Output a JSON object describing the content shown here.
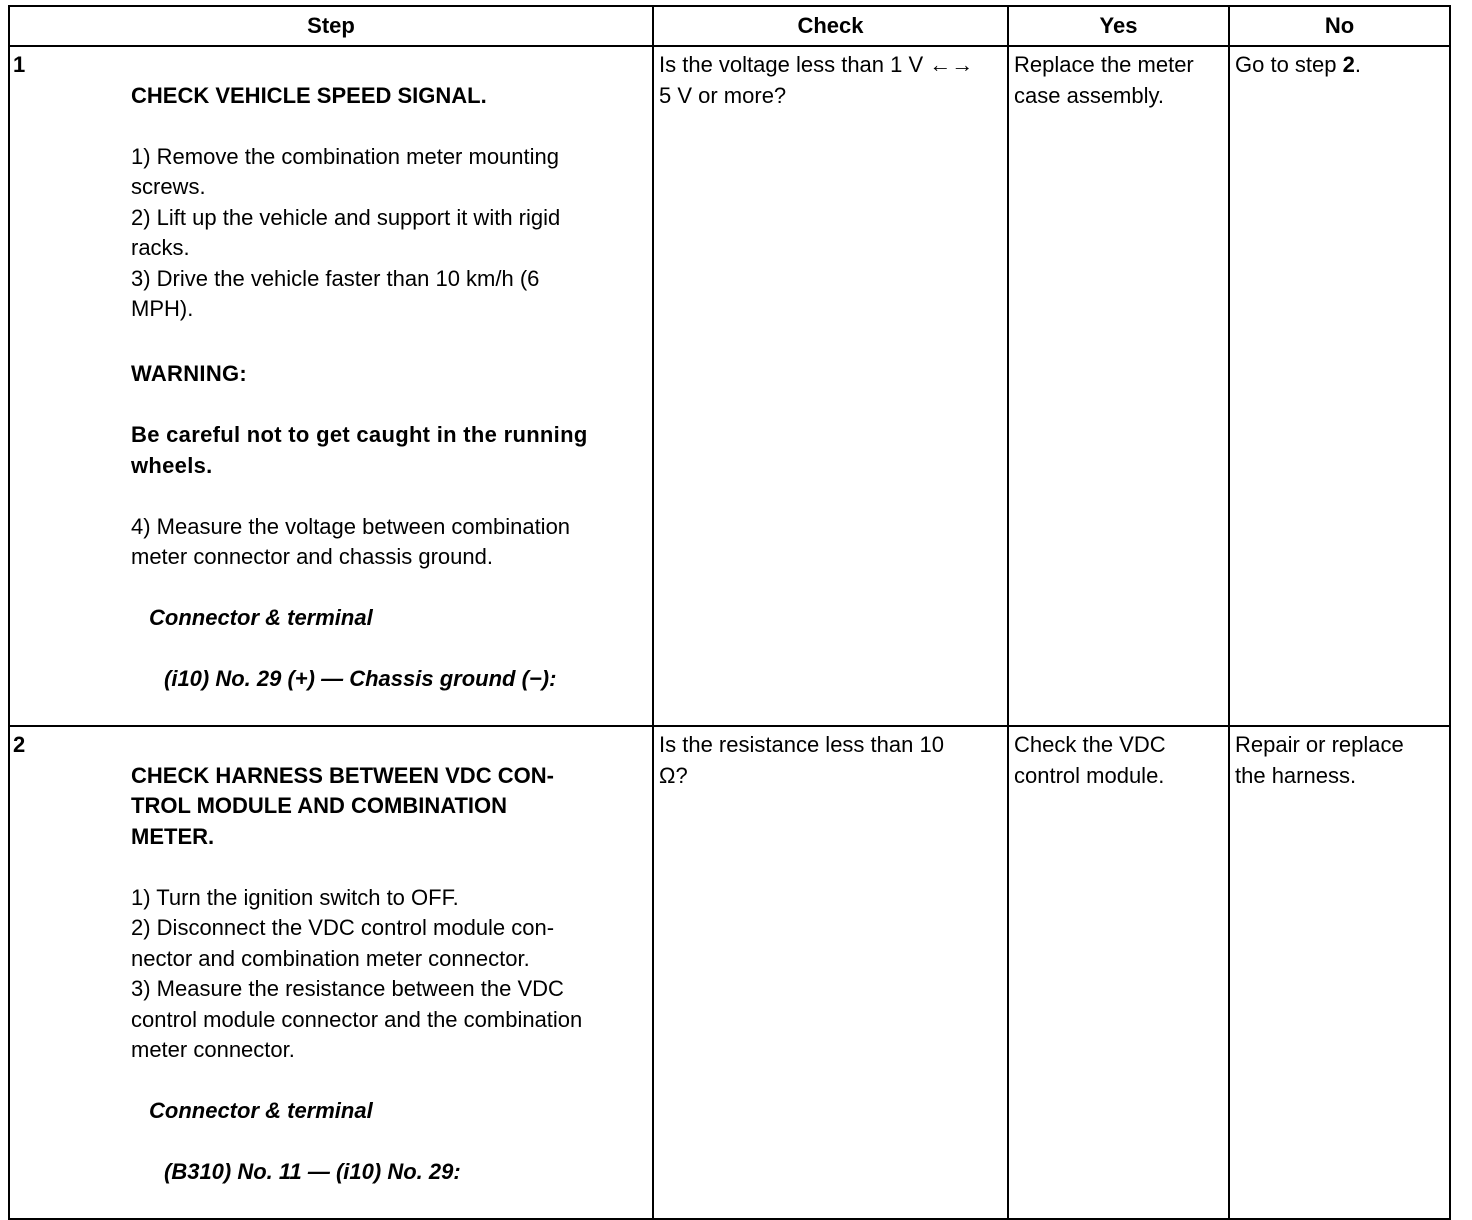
{
  "headers": {
    "step": "Step",
    "check": "Check",
    "yes": "Yes",
    "no": "No"
  },
  "rows": [
    {
      "number": "1",
      "title": "CHECK VEHICLE SPEED SIGNAL.",
      "steps_a": "1)  Remove the combination meter mounting\nscrews.\n2)  Lift up the vehicle and support it with rigid\nracks.\n3)  Drive the vehicle faster than 10 km/h (6\nMPH).",
      "warning_label": "WARNING:",
      "warning_text": "Be careful not to get caught in the running\nwheels.",
      "steps_b": "4)  Measure the voltage between combination\nmeter connector and chassis ground.",
      "connector_label": "Connector & terminal",
      "connector_value": "(i10) No. 29 (+) — Chassis ground (−):",
      "check": "Is the voltage less than 1 V ←→\n5 V or more?",
      "yes": "Replace the meter\ncase assembly.",
      "no_prefix": "Go to step ",
      "no_step": "2",
      "no_suffix": "."
    },
    {
      "number": "2",
      "title": "CHECK HARNESS BETWEEN VDC CON-\nTROL MODULE AND COMBINATION\nMETER.",
      "steps_a": "1)  Turn the ignition switch to OFF.\n2)  Disconnect the VDC control module con-\nnector and combination meter connector.\n3)  Measure the resistance between the VDC\ncontrol module connector and the combination\nmeter connector.",
      "connector_label": "Connector & terminal",
      "connector_value": "(B310) No. 11 — (i10) No. 29:",
      "check": "Is the resistance less than 10\nΩ?",
      "yes": "Check the VDC\ncontrol module.",
      "no": "Repair or replace\nthe harness."
    }
  ]
}
